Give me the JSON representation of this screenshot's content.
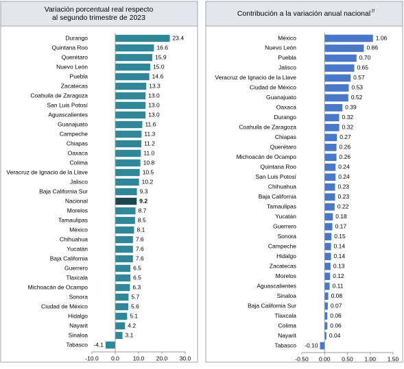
{
  "chart_data": [
    {
      "type": "bar",
      "title": [
        "Variación porcentual real respecto",
        "al segundo trimestre de 2023"
      ],
      "categories": [
        "Durango",
        "Quintana Roo",
        "Querétaro",
        "Nuevo León",
        "Puebla",
        "Zacatecas",
        "Coahuila de Zaragoza",
        "San Luis Potosí",
        "Aguascalientes",
        "Guanajuato",
        "Campeche",
        "Chiapas",
        "Oaxaca",
        "Colima",
        "Veracruz de Ignacio de la Llave",
        "Jalisco",
        "Baja California Sur",
        "Nacional",
        "Morelos",
        "Tamaulipas",
        "México",
        "Chihuahua",
        "Yucatán",
        "Baja California",
        "Guerrero",
        "Tlaxcala",
        "Michoacán de Ocampo",
        "Sonora",
        "Ciudad de México",
        "Hidalgo",
        "Nayarit",
        "Sinaloa",
        "Tabasco"
      ],
      "values": [
        23.4,
        16.6,
        15.9,
        15.0,
        14.6,
        13.3,
        13.0,
        13.0,
        13.0,
        11.6,
        11.3,
        11.2,
        11.0,
        10.8,
        10.5,
        10.2,
        9.3,
        9.2,
        8.7,
        8.5,
        8.1,
        7.6,
        7.6,
        7.6,
        6.5,
        6.5,
        6.3,
        5.7,
        5.6,
        5.1,
        4.2,
        3.1,
        -4.1
      ],
      "value_labels": [
        "23.4",
        "16.6",
        "15.9",
        "15.0",
        "14.6",
        "13.3",
        "13.0",
        "13.0",
        "13.0",
        "11.6",
        "11.3",
        "11.2",
        "11.0",
        "10.8",
        "10.5",
        "10.2",
        "9.3",
        "9.2",
        "8.7",
        "8.5",
        "8.1",
        "7.6",
        "7.6",
        "7.6",
        "6.5",
        "6.5",
        "6.3",
        "5.7",
        "5.6",
        "5.1",
        "4.2",
        "3.1",
        "-4.1"
      ],
      "color": "#2f8797",
      "highlight": {
        "category": "Nacional",
        "color": "#1c4750"
      },
      "xlim": [
        -10,
        30
      ],
      "xticks": [
        {
          "value": -10,
          "label": "-10.0"
        },
        {
          "value": 0,
          "label": "0.0"
        },
        {
          "value": 10,
          "label": "10.0"
        },
        {
          "value": 20,
          "label": "20.0"
        },
        {
          "value": 30,
          "label": "30.0"
        }
      ]
    },
    {
      "type": "bar",
      "title": [
        "Contribución a la variación anual nacional"
      ],
      "title_note": "2/",
      "categories": [
        "México",
        "Nuevo León",
        "Puebla",
        "Jalisco",
        "Veracruz de Ignacio de la Llave",
        "Ciudad de México",
        "Guanajuato",
        "Oaxaca",
        "Durango",
        "Coahuila de Zaragoza",
        "Chiapas",
        "Querétaro",
        "Michoacán de Ocampo",
        "Quintana Roo",
        "San Luis Potosí",
        "Chihuahua",
        "Baja California",
        "Tamaulipas",
        "Yucatán",
        "Guerrero",
        "Sonora",
        "Campeche",
        "Hidalgo",
        "Zacatecas",
        "Morelos",
        "Aguascalientes",
        "Sinaloa",
        "Baja California Sur",
        "Tlaxcala",
        "Colima",
        "Nayarit",
        "Tabasco"
      ],
      "values": [
        1.06,
        0.86,
        0.7,
        0.65,
        0.57,
        0.53,
        0.52,
        0.39,
        0.32,
        0.32,
        0.27,
        0.26,
        0.26,
        0.24,
        0.24,
        0.23,
        0.23,
        0.22,
        0.18,
        0.17,
        0.15,
        0.14,
        0.14,
        0.13,
        0.12,
        0.11,
        0.08,
        0.07,
        0.06,
        0.06,
        0.04,
        -0.1
      ],
      "value_labels": [
        "1.06",
        "0.86",
        "0.70",
        "0.65",
        "0.57",
        "0.53",
        "0.52",
        "0.39",
        "0.32",
        "0.32",
        "0.27",
        "0.26",
        "0.26",
        "0.24",
        "0.24",
        "0.23",
        "0.23",
        "0.22",
        "0.18",
        "0.17",
        "0.15",
        "0.14",
        "0.14",
        "0.13",
        "0.12",
        "0.11",
        "0.08",
        "0.07",
        "0.06",
        "0.06",
        "0.04",
        "-0.10"
      ],
      "color": "#4a78c8",
      "xlim": [
        -0.5,
        1.5
      ],
      "xticks": [
        {
          "value": -0.5,
          "label": "-0.50"
        },
        {
          "value": 0,
          "label": "0.00"
        },
        {
          "value": 0.5,
          "label": "0.50"
        },
        {
          "value": 1,
          "label": "1.00"
        },
        {
          "value": 1.5,
          "label": "1.50"
        }
      ]
    }
  ]
}
